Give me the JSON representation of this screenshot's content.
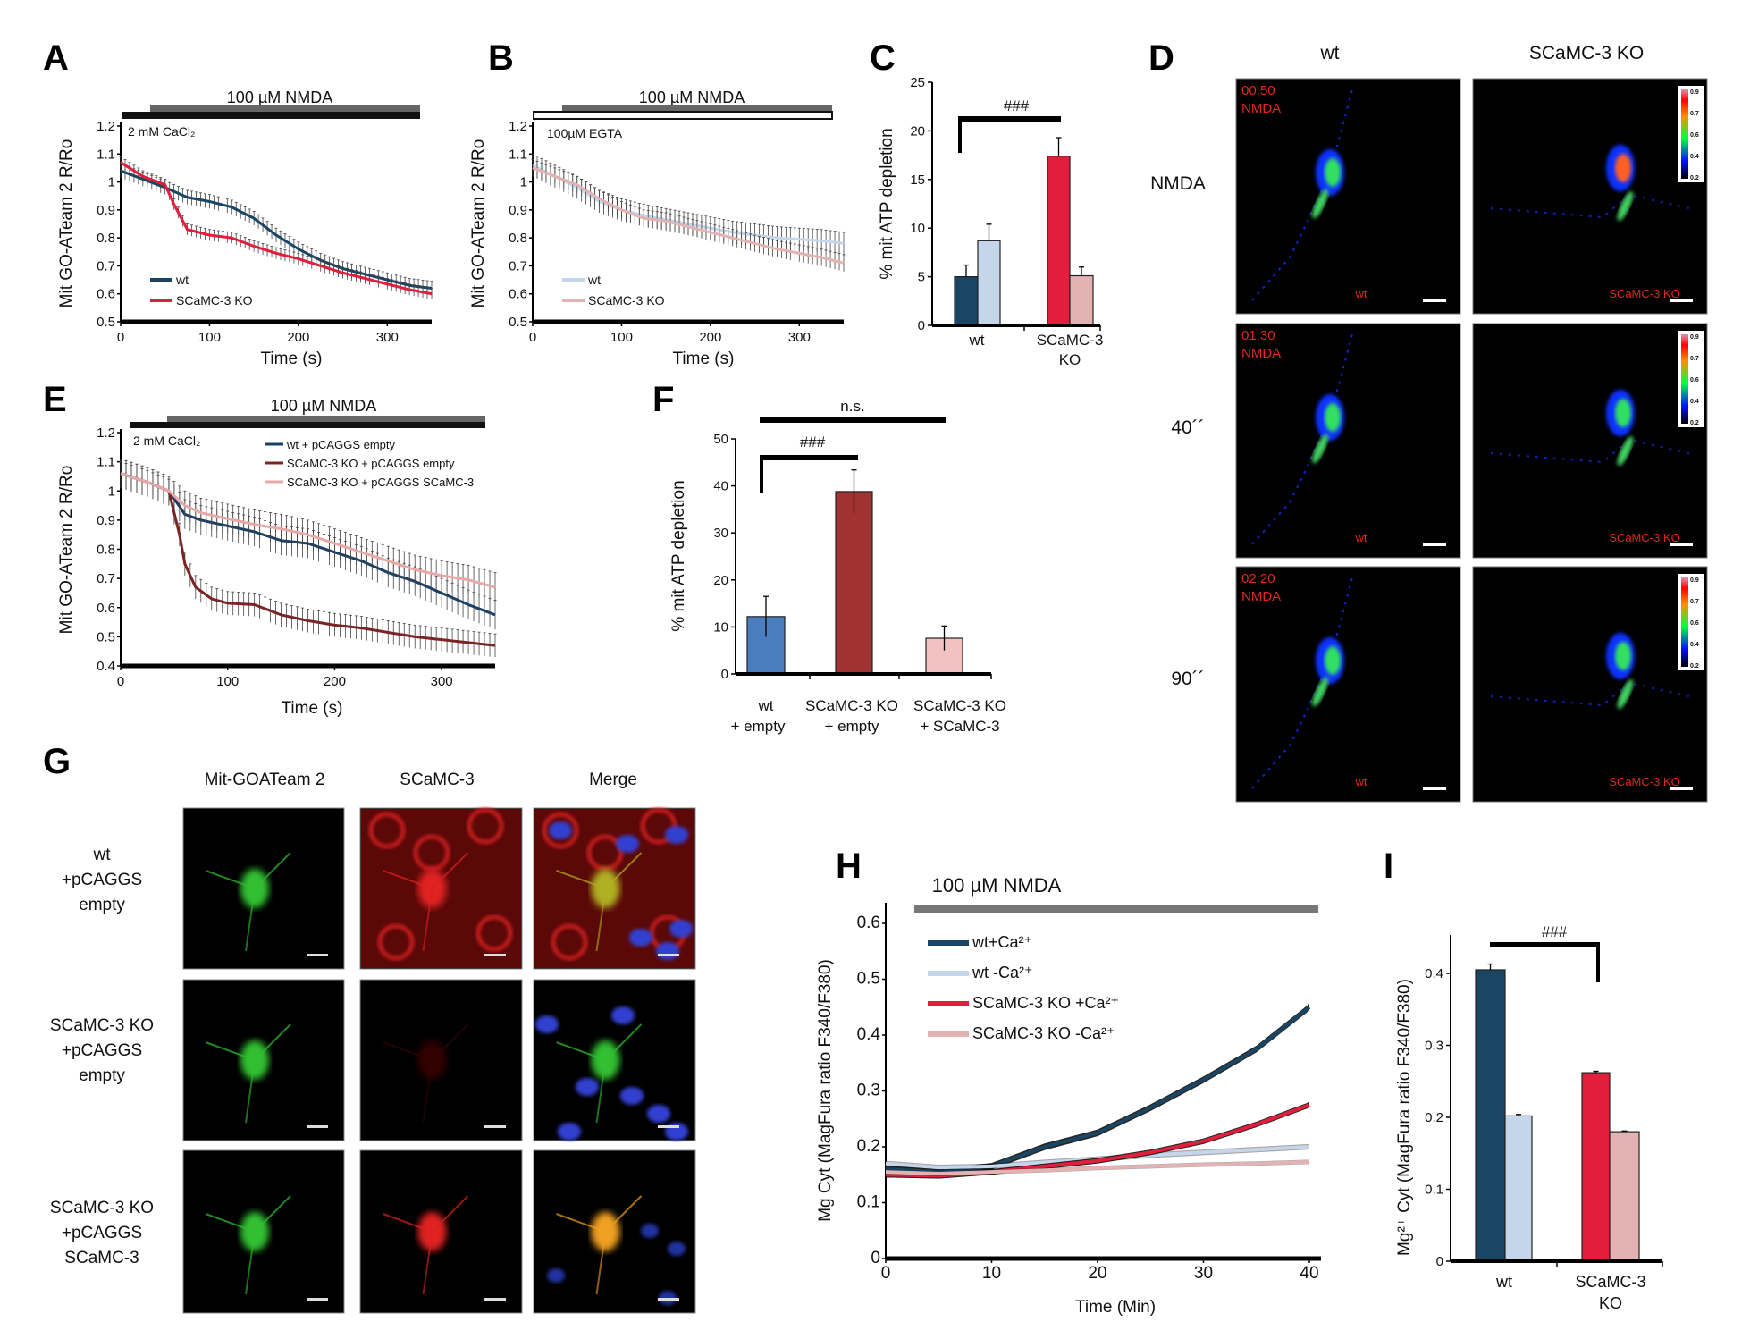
{
  "panel_labels": {
    "A": "A",
    "B": "B",
    "C": "C",
    "D": "D",
    "E": "E",
    "F": "F",
    "G": "G",
    "H": "H",
    "I": "I"
  },
  "nmda_label": "100 µM NMDA",
  "chart_data": [
    {
      "id": "A",
      "type": "line",
      "annotation": "2 mM CaCl₂",
      "xlabel": "Time (s)",
      "ylabel": "Mit GO-ATeam 2 R/Ro",
      "xlim": [
        0,
        350
      ],
      "ylim": [
        0.5,
        1.2
      ],
      "xticks": [
        0,
        100,
        200,
        300
      ],
      "yticks": [
        0.5,
        0.6,
        0.7,
        0.8,
        0.9,
        1,
        1.1,
        1.2
      ],
      "legend_position": "bottom-left",
      "series": [
        {
          "name": "wt",
          "color": "#1a4563",
          "error": 0.025,
          "x": [
            0,
            25,
            50,
            75,
            100,
            125,
            150,
            175,
            200,
            225,
            250,
            275,
            300,
            325,
            350
          ],
          "y": [
            1.04,
            1.01,
            0.98,
            0.945,
            0.93,
            0.91,
            0.87,
            0.81,
            0.76,
            0.72,
            0.69,
            0.67,
            0.65,
            0.63,
            0.62
          ]
        },
        {
          "name": "SCaMC-3 KO",
          "color": "#e31d3c",
          "error": 0.02,
          "x": [
            0,
            25,
            50,
            60,
            75,
            100,
            125,
            150,
            175,
            200,
            225,
            250,
            275,
            300,
            325,
            350
          ],
          "y": [
            1.07,
            1.02,
            0.99,
            0.92,
            0.83,
            0.81,
            0.8,
            0.77,
            0.745,
            0.725,
            0.7,
            0.675,
            0.655,
            0.635,
            0.615,
            0.6
          ]
        }
      ]
    },
    {
      "id": "B",
      "type": "line",
      "annotation": "100µM EGTA",
      "xlabel": "Time (s)",
      "ylabel": "Mit GO-ATeam 2 R/Ro",
      "xlim": [
        0,
        350
      ],
      "ylim": [
        0.5,
        1.2
      ],
      "xticks": [
        0,
        100,
        200,
        300
      ],
      "yticks": [
        0.5,
        0.6,
        0.7,
        0.8,
        0.9,
        1,
        1.1,
        1.2
      ],
      "legend_position": "bottom-left",
      "series": [
        {
          "name": "wt",
          "color": "#c5d6ea",
          "error": 0.04,
          "x": [
            0,
            25,
            50,
            75,
            100,
            125,
            150,
            175,
            200,
            225,
            250,
            275,
            300,
            325,
            350
          ],
          "y": [
            1.06,
            1.02,
            0.98,
            0.93,
            0.9,
            0.88,
            0.865,
            0.85,
            0.835,
            0.82,
            0.81,
            0.8,
            0.795,
            0.79,
            0.78
          ]
        },
        {
          "name": "SCaMC-3 KO",
          "color": "#e3b3b3",
          "error": 0.03,
          "x": [
            0,
            25,
            50,
            75,
            100,
            125,
            150,
            175,
            200,
            225,
            250,
            275,
            300,
            325,
            350
          ],
          "y": [
            1.05,
            1.02,
            0.99,
            0.94,
            0.9,
            0.87,
            0.86,
            0.84,
            0.82,
            0.8,
            0.78,
            0.76,
            0.745,
            0.73,
            0.71
          ]
        }
      ]
    },
    {
      "id": "C",
      "type": "bar",
      "ylabel": "% mit ATP depletion",
      "ylim": [
        0,
        25
      ],
      "yticks": [
        0,
        5,
        10,
        15,
        20,
        25
      ],
      "categories": [
        "wt",
        "SCaMC-3",
        "KO"
      ],
      "significance": "###",
      "bars": [
        {
          "group": "wt",
          "condition": "+Ca",
          "value": 5.0,
          "error": 1.2,
          "color": "#1a4563"
        },
        {
          "group": "wt",
          "condition": "-Ca",
          "value": 8.7,
          "error": 1.7,
          "color": "#c5d6ea"
        },
        {
          "group": "SCaMC-3 KO",
          "condition": "+Ca",
          "value": 17.4,
          "error": 1.9,
          "color": "#e31d3c"
        },
        {
          "group": "SCaMC-3 KO",
          "condition": "-Ca",
          "value": 5.1,
          "error": 0.9,
          "color": "#e3b3b3"
        }
      ]
    },
    {
      "id": "E",
      "type": "line",
      "annotation": "2 mM CaCl₂",
      "xlabel": "Time (s)",
      "ylabel": "Mit GO-ATeam 2 R/Ro",
      "xlim": [
        0,
        350
      ],
      "ylim": [
        0.4,
        1.2
      ],
      "xticks": [
        0,
        100,
        200,
        300
      ],
      "yticks": [
        0.4,
        0.5,
        0.6,
        0.7,
        0.8,
        0.9,
        1,
        1.1,
        1.2
      ],
      "legend_position": "top-right",
      "series": [
        {
          "name": "wt + pCAGGS empty",
          "color": "#1c3f63",
          "error": 0.05,
          "x": [
            0,
            25,
            45,
            60,
            75,
            100,
            125,
            150,
            175,
            200,
            225,
            250,
            275,
            300,
            325,
            350
          ],
          "y": [
            1.06,
            1.03,
            1.0,
            0.92,
            0.9,
            0.88,
            0.86,
            0.83,
            0.82,
            0.79,
            0.76,
            0.72,
            0.69,
            0.65,
            0.61,
            0.575
          ]
        },
        {
          "name": "SCaMC-3 KO + pCAGGS empty",
          "color": "#7a2426",
          "error": 0.04,
          "x": [
            0,
            25,
            45,
            55,
            60,
            70,
            85,
            100,
            125,
            150,
            175,
            200,
            225,
            250,
            275,
            300,
            325,
            350
          ],
          "y": [
            1.06,
            1.03,
            1.0,
            0.85,
            0.75,
            0.67,
            0.63,
            0.615,
            0.61,
            0.575,
            0.555,
            0.54,
            0.53,
            0.515,
            0.5,
            0.49,
            0.48,
            0.47
          ]
        },
        {
          "name": "SCaMC-3 KO + pCAGGS SCaMC-3",
          "color": "#e8a8a8",
          "error": 0.05,
          "x": [
            0,
            25,
            45,
            60,
            75,
            100,
            125,
            150,
            175,
            200,
            225,
            250,
            275,
            300,
            325,
            350
          ],
          "y": [
            1.06,
            1.03,
            1.0,
            0.95,
            0.925,
            0.905,
            0.885,
            0.87,
            0.85,
            0.82,
            0.79,
            0.76,
            0.73,
            0.71,
            0.695,
            0.67
          ]
        }
      ]
    },
    {
      "id": "F",
      "type": "bar",
      "ylabel": "% mit ATP depletion",
      "ylim": [
        0,
        50
      ],
      "yticks": [
        0,
        10,
        20,
        30,
        40,
        50
      ],
      "categories": [
        [
          "wt",
          "+  empty"
        ],
        [
          "SCaMC-3 KO",
          "+ empty"
        ],
        [
          "SCaMC-3 KO",
          "+ SCaMC-3"
        ]
      ],
      "significance": [
        "###",
        "n.s."
      ],
      "bars": [
        {
          "group": "wt + empty",
          "value": 12.2,
          "error": 4.3,
          "color": "#4a7ebf"
        },
        {
          "group": "SCaMC-3 KO + empty",
          "value": 38.8,
          "error": 4.6,
          "color": "#a0322f"
        },
        {
          "group": "SCaMC-3 KO + SCaMC-3",
          "value": 7.6,
          "error": 2.6,
          "color": "#f2c2c2"
        }
      ]
    },
    {
      "id": "H",
      "type": "line",
      "xlabel": "Time (Min)",
      "ylabel": "Mg   Cyt (MagFura ratio F340/F380)",
      "xlim": [
        0,
        40
      ],
      "ylim": [
        0,
        0.6
      ],
      "xticks": [
        0,
        10,
        20,
        30,
        40
      ],
      "yticks": [
        0,
        0.1,
        0.2,
        0.3,
        0.4,
        0.5,
        0.6
      ],
      "legend_position": "top-left",
      "series": [
        {
          "name": "wt+Ca²⁺",
          "color": "#1a4563",
          "error": 0.006,
          "x": [
            0,
            5,
            10,
            15,
            20,
            25,
            30,
            35,
            40
          ],
          "y": [
            0.16,
            0.155,
            0.165,
            0.2,
            0.225,
            0.27,
            0.32,
            0.375,
            0.45
          ]
        },
        {
          "name": "wt -Ca²⁺",
          "color": "#c5d6ea",
          "error": 0.005,
          "x": [
            0,
            5,
            10,
            15,
            20,
            25,
            30,
            35,
            40
          ],
          "y": [
            0.17,
            0.163,
            0.165,
            0.172,
            0.178,
            0.185,
            0.19,
            0.195,
            0.2
          ]
        },
        {
          "name": "SCaMC-3 KO +Ca²⁺",
          "color": "#e31d3c",
          "error": 0.005,
          "x": [
            0,
            5,
            10,
            15,
            20,
            25,
            30,
            35,
            40
          ],
          "y": [
            0.15,
            0.148,
            0.155,
            0.165,
            0.175,
            0.19,
            0.21,
            0.24,
            0.275
          ]
        },
        {
          "name": "SCaMC-3 KO -Ca²⁺",
          "color": "#e3b3b3",
          "error": 0.004,
          "x": [
            0,
            5,
            10,
            15,
            20,
            25,
            30,
            35,
            40
          ],
          "y": [
            0.155,
            0.152,
            0.155,
            0.158,
            0.162,
            0.165,
            0.168,
            0.17,
            0.173
          ]
        }
      ]
    },
    {
      "id": "I",
      "type": "bar",
      "ylabel": "Mg²⁺ Cyt (MagFura ratio F340/F380)",
      "ylim": [
        0,
        0.4
      ],
      "yticks": [
        0,
        0.1,
        0.2,
        0.3,
        0.4
      ],
      "categories": [
        "wt",
        "SCaMC-3",
        "KO"
      ],
      "significance": "###",
      "bars": [
        {
          "group": "wt",
          "condition": "+Ca",
          "value": 0.405,
          "error": 0.008,
          "color": "#1a4563"
        },
        {
          "group": "wt",
          "condition": "-Ca",
          "value": 0.202,
          "error": 0.002,
          "color": "#c5d6ea"
        },
        {
          "group": "SCaMC-3 KO",
          "condition": "+Ca",
          "value": 0.262,
          "error": 0.002,
          "color": "#e31d3c"
        },
        {
          "group": "SCaMC-3 KO",
          "condition": "-Ca",
          "value": 0.18,
          "error": 0.001,
          "color": "#e3b3b3"
        }
      ]
    }
  ],
  "panel_d": {
    "columns": [
      "wt",
      "SCaMC-3 KO"
    ],
    "rows": [
      "NMDA",
      "40´´",
      "90´´"
    ],
    "timestamps": [
      "00:50",
      "01:30",
      "02:20"
    ],
    "stim_label": "NMDA",
    "image_labels": [
      "wt",
      "SCaMC-3 KO"
    ],
    "colorbar_ticks": [
      "0.9",
      "0.7",
      "0.6",
      "0.4",
      "0.2"
    ]
  },
  "panel_g": {
    "columns": [
      "Mit-GOATeam 2",
      "SCaMC-3",
      "Merge"
    ],
    "rows": [
      [
        "wt",
        "+pCAGGS",
        "empty"
      ],
      [
        "SCaMC-3 KO",
        "+pCAGGS",
        "empty"
      ],
      [
        "SCaMC-3 KO",
        "+pCAGGS",
        "SCaMC-3"
      ]
    ]
  }
}
